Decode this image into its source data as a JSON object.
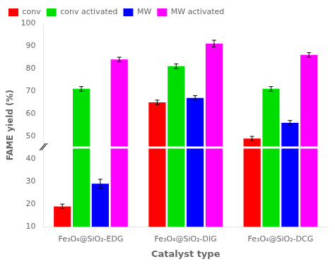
{
  "chart_data": {
    "type": "bar",
    "xlabel": "Catalyst type",
    "ylabel": "FAME yield (%)",
    "categories": [
      "Fe₃O₄@SiO₂-EDG",
      "Fe₃O₄@SiO₂-DIG",
      "Fe₃O₄@SiO₂-DCG"
    ],
    "series": [
      {
        "name": "conv",
        "color": "#ff0000",
        "values": [
          19,
          65,
          49
        ],
        "errors": [
          1.0,
          1.0,
          1.0
        ]
      },
      {
        "name": "conv activated",
        "color": "#00dd00",
        "values": [
          71,
          81,
          71
        ],
        "errors": [
          1.0,
          1.0,
          1.0
        ]
      },
      {
        "name": "MW",
        "color": "#0000ff",
        "values": [
          29,
          67,
          56
        ],
        "errors": [
          2.0,
          1.0,
          1.0
        ]
      },
      {
        "name": "MW activated",
        "color": "#ff00ff",
        "values": [
          84,
          91,
          86
        ],
        "errors": [
          1.0,
          1.5,
          1.0
        ]
      }
    ],
    "ylim": [
      10,
      100
    ],
    "yticks": [
      10,
      20,
      30,
      40,
      50,
      60,
      70,
      80,
      90,
      100
    ],
    "grid": false,
    "legend": "upper left",
    "annotations": [
      {
        "text": "⁄⁄",
        "y": 45
      }
    ]
  }
}
